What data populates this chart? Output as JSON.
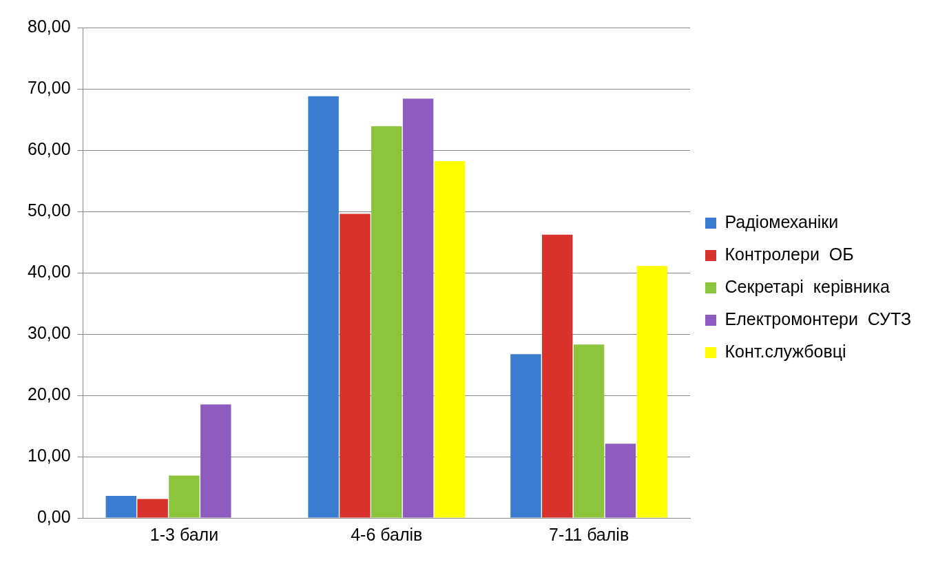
{
  "chart_data": {
    "type": "bar",
    "categories": [
      "1-3 бали",
      "4-6 балів",
      "7-11 балів"
    ],
    "series": [
      {
        "name": "Радіомеханіки",
        "color": "#3a7dd0",
        "values": [
          3.6,
          68.8,
          26.7
        ]
      },
      {
        "name": "Контролери  ОБ",
        "color": "#d9312b",
        "values": [
          3.1,
          49.6,
          46.2
        ]
      },
      {
        "name": "Секретарі  керівника",
        "color": "#8cc43c",
        "values": [
          6.9,
          63.9,
          28.3
        ]
      },
      {
        "name": "Електромонтери  СУТЗ",
        "color": "#8e5cc0",
        "values": [
          18.5,
          68.4,
          12.1
        ]
      },
      {
        "name": "Конт.службовці",
        "color": "#ffff00",
        "values": [
          0,
          58.2,
          41.1
        ]
      }
    ],
    "ylim": [
      0,
      80
    ],
    "yticks": [
      {
        "value": 0,
        "label": "0,00"
      },
      {
        "value": 10,
        "label": "10,00"
      },
      {
        "value": 20,
        "label": "20,00"
      },
      {
        "value": 30,
        "label": "30,00"
      },
      {
        "value": 40,
        "label": "40,00"
      },
      {
        "value": 50,
        "label": "50,00"
      },
      {
        "value": 60,
        "label": "60,00"
      },
      {
        "value": 70,
        "label": "70,00"
      },
      {
        "value": 80,
        "label": "80,00"
      }
    ],
    "grid": "y",
    "legend": "right"
  }
}
